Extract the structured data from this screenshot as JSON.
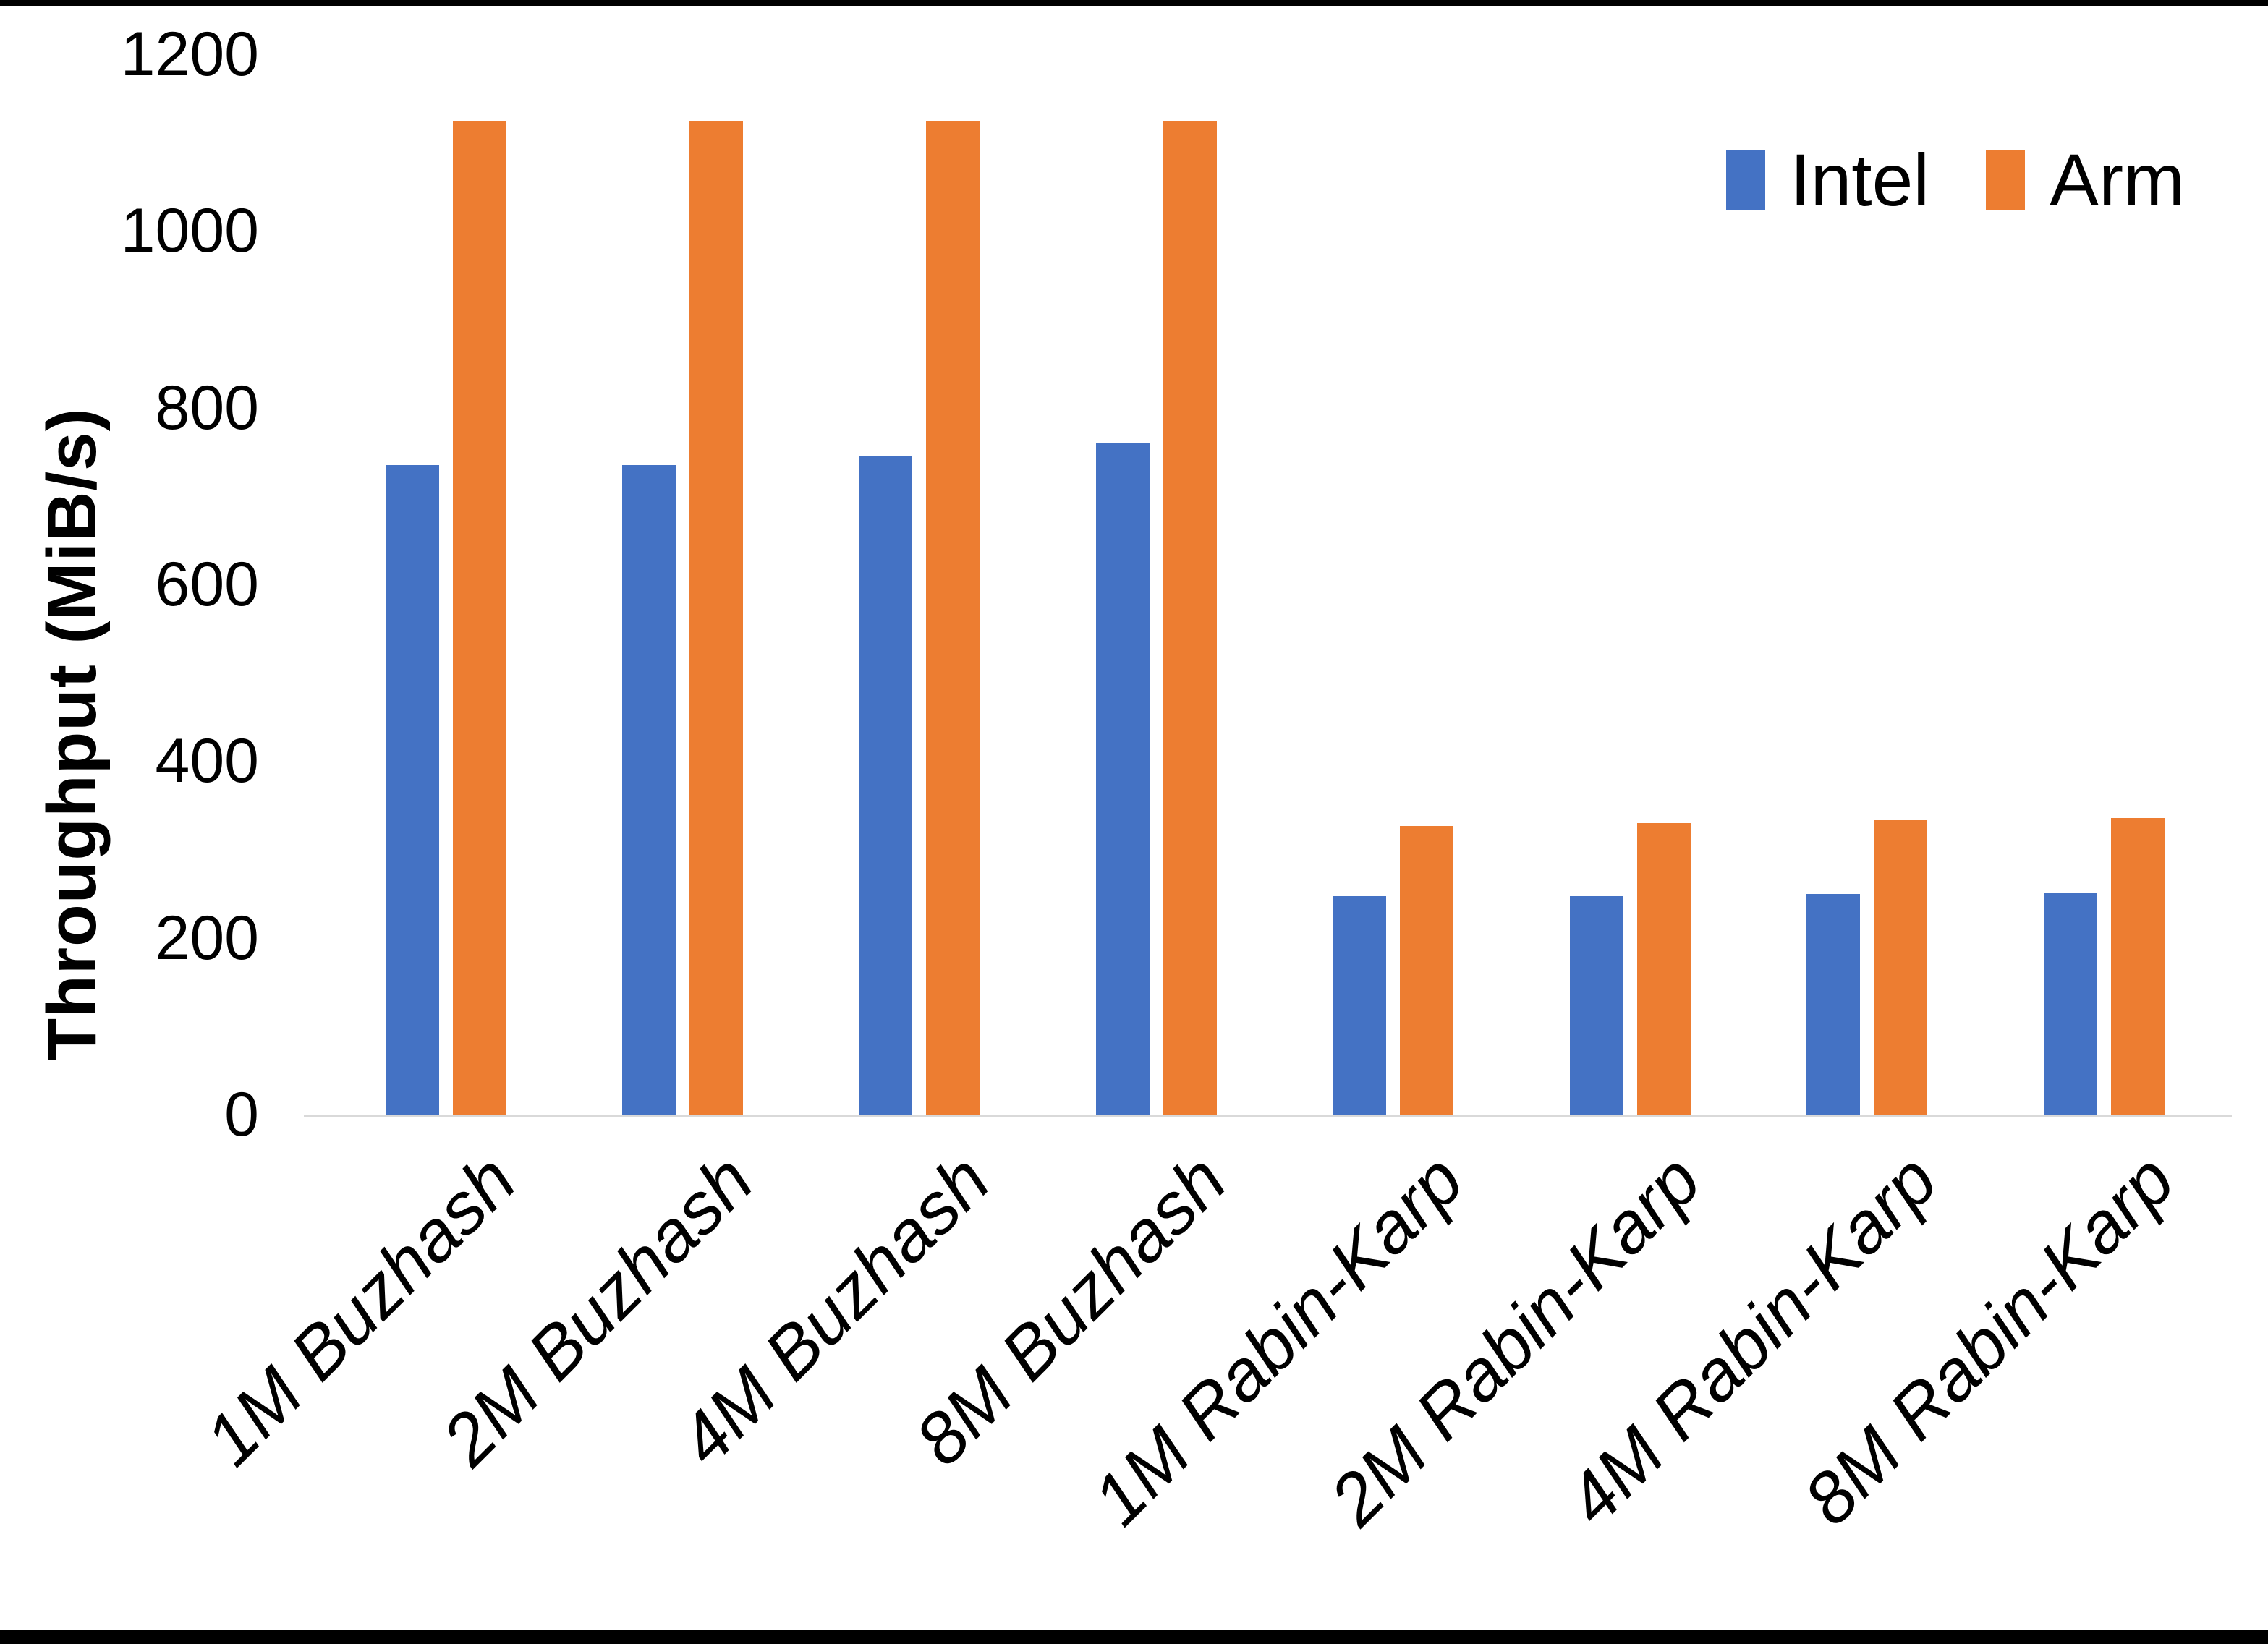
{
  "chart_data": {
    "type": "bar",
    "title": "",
    "categories": [
      "1M Buzhash",
      "2M Buzhash",
      "4M Buzhash",
      "8M Buzhash",
      "1M Rabin-Karp",
      "2M Rabin-Karp",
      "4M Rabin-Karp",
      "8M Rabin-Karp"
    ],
    "series": [
      {
        "name": "Intel",
        "color": "#4472C4",
        "values": [
          735,
          735,
          745,
          760,
          247,
          247,
          250,
          251
        ]
      },
      {
        "name": "Arm",
        "color": "#ED7D31",
        "values": [
          1125,
          1125,
          1125,
          1125,
          327,
          330,
          333,
          336
        ]
      }
    ],
    "xlabel": "",
    "ylabel": "Throughput (MiB/s)",
    "ylim": [
      0,
      1200
    ],
    "yticks": [
      0,
      200,
      400,
      600,
      800,
      1000,
      1200
    ],
    "grid": "off",
    "legend_position": "top-right",
    "axis_line_color": "#d9d9d9",
    "text_color": "#000000"
  }
}
